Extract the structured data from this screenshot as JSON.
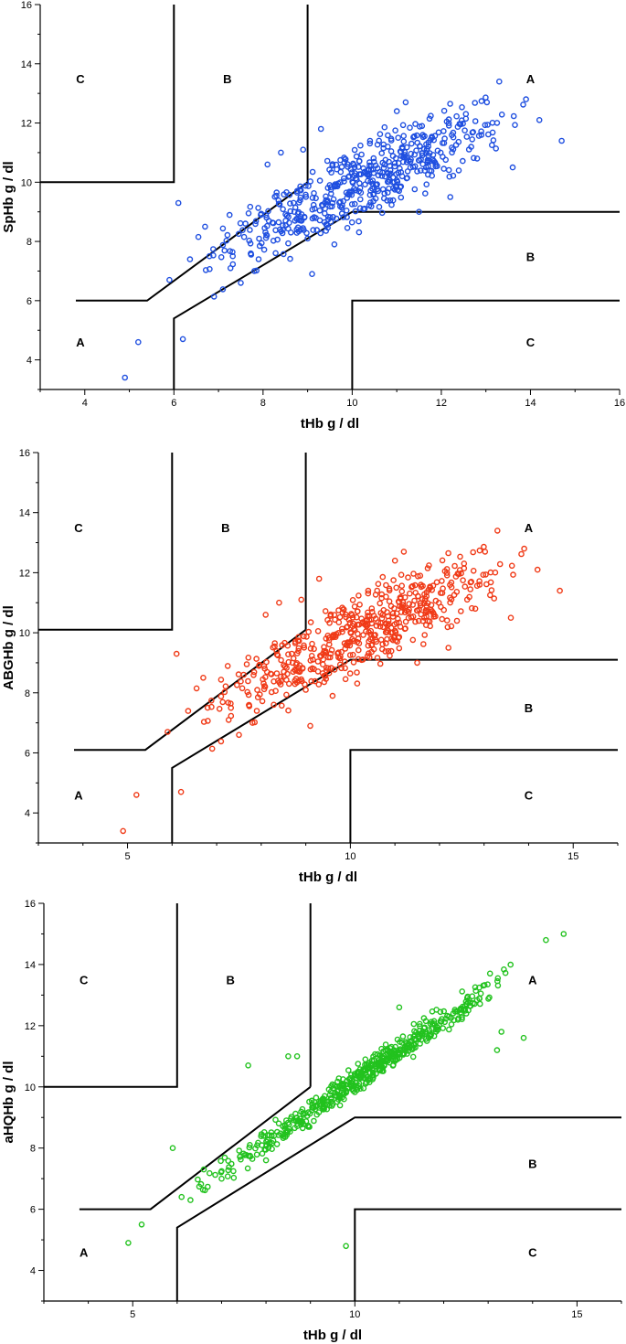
{
  "chart_data": [
    {
      "type": "scatter",
      "xlabel": "tHb g / dl",
      "ylabel": "SpHb g / dl",
      "xlim": [
        3,
        16
      ],
      "ylim": [
        3,
        16
      ],
      "xticks": [
        4,
        6,
        8,
        10,
        12,
        14,
        16
      ],
      "yticks": [
        4,
        6,
        8,
        10,
        12,
        14,
        16
      ],
      "region_labels": [
        {
          "label": "C",
          "x": 3.9,
          "y": 13.5
        },
        {
          "label": "B",
          "x": 7.2,
          "y": 13.5
        },
        {
          "label": "A",
          "x": 14.0,
          "y": 13.5
        },
        {
          "label": "B",
          "x": 14.0,
          "y": 7.5
        },
        {
          "label": "A",
          "x": 3.9,
          "y": 4.6
        },
        {
          "label": "C",
          "x": 14.0,
          "y": 4.6
        }
      ],
      "zones": [
        [
          [
            3,
            10
          ],
          [
            6,
            10
          ],
          [
            6,
            16
          ]
        ],
        [
          [
            9,
            16
          ],
          [
            9,
            10
          ]
        ],
        [
          [
            3.8,
            6
          ],
          [
            5.4,
            6
          ],
          [
            9,
            10
          ]
        ],
        [
          [
            6,
            3
          ],
          [
            6,
            5.4
          ],
          [
            10,
            9
          ],
          [
            16,
            9
          ]
        ],
        [
          [
            10,
            3
          ],
          [
            10,
            6
          ],
          [
            16,
            6
          ]
        ]
      ],
      "color": "#1f4fe0",
      "trend": {
        "slope": 0.68,
        "intercept": 3.0,
        "sd": 0.85
      },
      "x": [
        4.9,
        5.2,
        5.9,
        6.2,
        13.3,
        14.7,
        13.9,
        8.9,
        9.3,
        12.9,
        14.2,
        11.2,
        6.1,
        6.7,
        7.5,
        8.1,
        9.1,
        10.8,
        11.5,
        12.2,
        13.6,
        7.9,
        8.4,
        9.0,
        9.6,
        10.4,
        11.0
      ],
      "y": [
        3.4,
        4.6,
        6.7,
        4.7,
        13.4,
        11.4,
        12.8,
        11.1,
        11.8,
        11.6,
        12.1,
        12.7,
        9.3,
        8.5,
        6.6,
        10.6,
        6.9,
        11.2,
        9.0,
        9.5,
        10.5,
        7.4,
        11.0,
        8.1,
        7.9,
        11.4,
        12.4
      ],
      "n_points": 520,
      "seed": 11
    },
    {
      "type": "scatter",
      "xlabel": "tHb g / dl",
      "ylabel": "ABGHb g / dl",
      "xlim": [
        3,
        16
      ],
      "ylim": [
        3,
        16
      ],
      "xticks": [
        5,
        10,
        15
      ],
      "yticks": [
        4,
        6,
        8,
        10,
        12,
        14,
        16
      ],
      "region_labels": [
        {
          "label": "C",
          "x": 3.9,
          "y": 13.5
        },
        {
          "label": "B",
          "x": 7.2,
          "y": 13.5
        },
        {
          "label": "A",
          "x": 14.0,
          "y": 13.5
        },
        {
          "label": "B",
          "x": 14.0,
          "y": 7.5
        },
        {
          "label": "A",
          "x": 3.9,
          "y": 4.6
        },
        {
          "label": "C",
          "x": 14.0,
          "y": 4.6
        }
      ],
      "zones": [
        [
          [
            3,
            10.1
          ],
          [
            6,
            10.1
          ],
          [
            6,
            16
          ]
        ],
        [
          [
            9,
            16
          ],
          [
            9,
            10.1
          ]
        ],
        [
          [
            3.8,
            6.1
          ],
          [
            5.4,
            6.1
          ],
          [
            9,
            10.1
          ]
        ],
        [
          [
            6,
            3
          ],
          [
            6,
            5.5
          ],
          [
            10,
            9.1
          ],
          [
            16,
            9.1
          ]
        ],
        [
          [
            10,
            3
          ],
          [
            10,
            6.1
          ],
          [
            16,
            6.1
          ]
        ]
      ],
      "color": "#f03a17",
      "trend": {
        "slope": 0.68,
        "intercept": 3.0,
        "sd": 0.85
      },
      "x": [
        4.9,
        5.2,
        5.9,
        6.2,
        13.3,
        14.7,
        13.9,
        8.9,
        9.3,
        12.9,
        14.2,
        11.2,
        6.1,
        6.7,
        7.5,
        8.1,
        9.1,
        10.8,
        11.5,
        12.2,
        13.6,
        7.9,
        8.4,
        9.0,
        9.6,
        10.4,
        11.0
      ],
      "y": [
        3.4,
        4.6,
        6.7,
        4.7,
        13.4,
        11.4,
        12.8,
        11.1,
        11.8,
        11.6,
        12.1,
        12.7,
        9.3,
        8.5,
        6.6,
        10.6,
        6.9,
        11.2,
        9.0,
        9.5,
        10.5,
        7.4,
        11.0,
        8.1,
        7.9,
        11.4,
        12.4
      ],
      "n_points": 520,
      "seed": 11
    },
    {
      "type": "scatter",
      "xlabel": "tHb g / dl",
      "ylabel": "aHQHb g / dl",
      "xlim": [
        3,
        16
      ],
      "ylim": [
        3,
        16
      ],
      "xticks": [
        5,
        10,
        15
      ],
      "yticks": [
        4,
        6,
        8,
        10,
        12,
        14,
        16
      ],
      "region_labels": [
        {
          "label": "C",
          "x": 3.9,
          "y": 13.5
        },
        {
          "label": "B",
          "x": 7.2,
          "y": 13.5
        },
        {
          "label": "A",
          "x": 14.0,
          "y": 13.5
        },
        {
          "label": "B",
          "x": 14.0,
          "y": 7.5
        },
        {
          "label": "A",
          "x": 3.9,
          "y": 4.6
        },
        {
          "label": "C",
          "x": 14.0,
          "y": 4.6
        }
      ],
      "zones": [
        [
          [
            3,
            10
          ],
          [
            6,
            10
          ],
          [
            6,
            16
          ]
        ],
        [
          [
            9,
            16
          ],
          [
            9,
            10
          ]
        ],
        [
          [
            3.8,
            6
          ],
          [
            5.4,
            6
          ],
          [
            9,
            10
          ]
        ],
        [
          [
            6,
            3
          ],
          [
            6,
            5.4
          ],
          [
            10,
            9
          ],
          [
            16,
            9
          ]
        ],
        [
          [
            10,
            3
          ],
          [
            10,
            6
          ],
          [
            16,
            6
          ]
        ]
      ],
      "color": "#22c21e",
      "trend": {
        "slope": 1.0,
        "intercept": 0.2,
        "sd": 0.3
      },
      "x": [
        4.9,
        5.2,
        5.9,
        9.8,
        14.7,
        14.3,
        13.2,
        13.8,
        13.3,
        8.5,
        8.7,
        6.1,
        6.3,
        7.6,
        8.0,
        7.0,
        6.6,
        11.0
      ],
      "y": [
        4.9,
        5.5,
        8.0,
        4.8,
        15.0,
        14.8,
        11.2,
        11.6,
        11.8,
        11.0,
        11.0,
        6.4,
        6.3,
        10.7,
        7.6,
        7.0,
        7.3,
        12.6
      ],
      "n_points": 520,
      "seed": 23
    }
  ]
}
